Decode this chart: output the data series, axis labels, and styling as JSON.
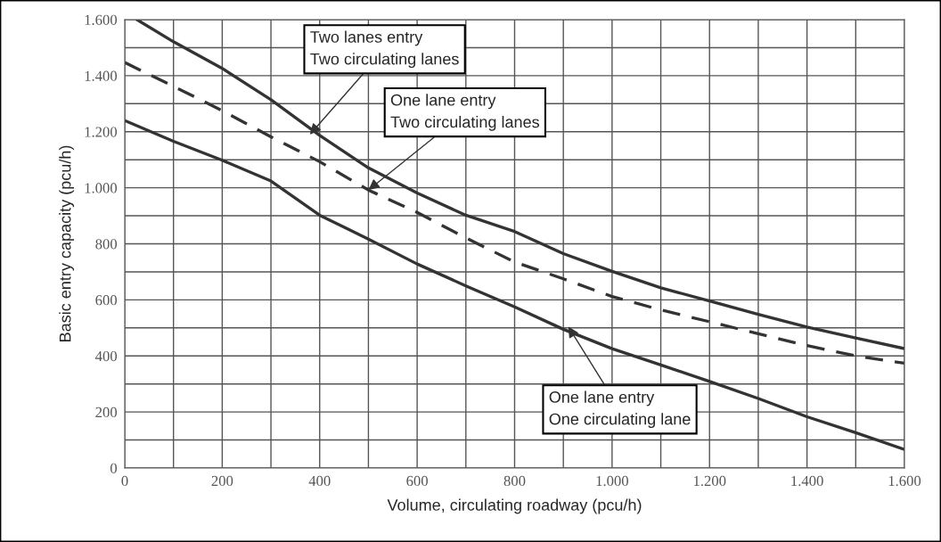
{
  "chart_data": {
    "type": "line",
    "xlabel": "Volume, circulating roadway (pcu/h)",
    "ylabel": "Basic entry capacity (pcu/h)",
    "xlim": [
      0,
      1600
    ],
    "ylim": [
      0,
      1600
    ],
    "xticks": [
      0,
      {
        "value": 100,
        "label": null
      },
      200,
      {
        "value": 300,
        "label": null
      },
      400,
      {
        "value": 500,
        "label": null
      },
      600,
      {
        "value": 700,
        "label": null
      },
      800,
      {
        "value": 900,
        "label": null
      },
      {
        "value": 1000,
        "label": "1.000"
      },
      {
        "value": 1100,
        "label": null
      },
      {
        "value": 1200,
        "label": "1.200"
      },
      {
        "value": 1300,
        "label": null
      },
      {
        "value": 1400,
        "label": "1.400"
      },
      {
        "value": 1500,
        "label": null
      },
      {
        "value": 1600,
        "label": "1.600"
      }
    ],
    "yticks": [
      0,
      {
        "value": 100,
        "label": null
      },
      200,
      {
        "value": 300,
        "label": null
      },
      400,
      {
        "value": 500,
        "label": null
      },
      600,
      {
        "value": 700,
        "label": null
      },
      800,
      {
        "value": 900,
        "label": null
      },
      {
        "value": 1000,
        "label": "1.000"
      },
      {
        "value": 1100,
        "label": null
      },
      {
        "value": 1200,
        "label": "1.200"
      },
      {
        "value": 1300,
        "label": null
      },
      {
        "value": 1400,
        "label": "1.400"
      },
      {
        "value": 1500,
        "label": null
      },
      {
        "value": 1600,
        "label": "1.600"
      }
    ],
    "grid": true,
    "series": [
      {
        "color": "#333333",
        "line_style": "solid",
        "x": [
          25,
          100,
          200,
          300,
          400,
          500,
          600,
          700,
          800,
          900,
          1000,
          1100,
          1200,
          1300,
          1400,
          1500,
          1600
        ],
        "values": [
          1600,
          1521,
          1426,
          1314,
          1187,
          1071,
          981,
          902,
          844,
          765,
          702,
          643,
          596,
          548,
          503,
          464,
          426
        ]
      },
      {
        "color": "#333333",
        "line_style": "dashed",
        "x": [
          0,
          100,
          200,
          300,
          400,
          500,
          600,
          700,
          800,
          900,
          1000,
          1100,
          1200,
          1300,
          1400,
          1500,
          1600
        ],
        "values": [
          1447,
          1362,
          1275,
          1182,
          1093,
          992,
          912,
          821,
          735,
          675,
          612,
          564,
          522,
          479,
          437,
          400,
          374
        ]
      },
      {
        "color": "#333333",
        "line_style": "solid",
        "x": [
          0,
          100,
          200,
          300,
          400,
          500,
          600,
          700,
          800,
          900,
          1000,
          1100,
          1200,
          1300,
          1400,
          1500,
          1600
        ],
        "values": [
          1240,
          1166,
          1098,
          1024,
          902,
          817,
          728,
          650,
          575,
          495,
          426,
          368,
          309,
          248,
          183,
          126,
          66
        ]
      }
    ],
    "annotations": [
      {
        "text": "Two lanes entry\nTwo circulating lanes",
        "x": 380,
        "y": 1190
      },
      {
        "text": "One lane entry\nTwo circulating lanes",
        "x": 500,
        "y": 992
      },
      {
        "text": "One lane entry\nOne circulating lane",
        "x": 910,
        "y": 505
      }
    ]
  }
}
